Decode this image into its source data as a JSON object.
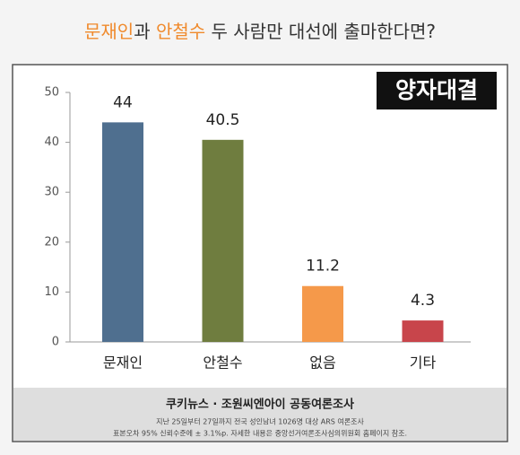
{
  "chart_data": {
    "type": "bar",
    "title_parts": [
      "문재인",
      "과 ",
      "안철수",
      " 두 사람만 대선에 출마한다면?"
    ],
    "title_colors": [
      "#f08a2c",
      "#333333",
      "#f08a2c",
      "#333333"
    ],
    "badge": "양자대결",
    "categories": [
      "문재인",
      "안철수",
      "없음",
      "기타"
    ],
    "values": [
      44,
      40.5,
      11.2,
      4.3
    ],
    "colors": [
      "#4f6f8f",
      "#6f7d3f",
      "#f5994a",
      "#c8454b"
    ],
    "ylim": [
      0,
      50
    ],
    "yticks": [
      0,
      10,
      20,
      30,
      40,
      50
    ],
    "source": "쿠키뉴스 · 조원씨엔아이 공동여론조사",
    "notes": [
      "지난 25일부터 27일까지 전국 성인남녀 1026명 대상 ARS 여론조사",
      "표본오차 95% 신뢰수준에 ± 3.1%p. 자세한 내용은 중앙선거여론조사심의위원회 홈페이지 참조."
    ]
  }
}
